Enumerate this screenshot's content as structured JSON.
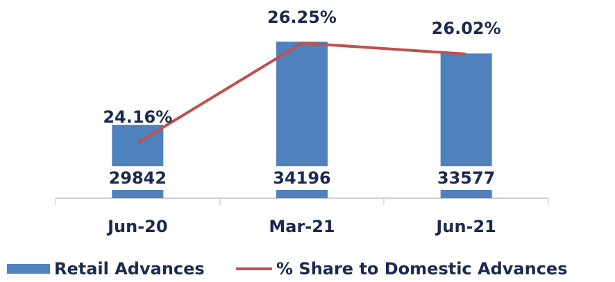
{
  "chart_data": {
    "type": "bar",
    "categories": [
      "Jun-20",
      "Mar-21",
      "Jun-21"
    ],
    "ylim": [
      26000,
      35000
    ],
    "y2lim": [
      23,
      26.6
    ],
    "series": [
      {
        "name": "Retail Advances",
        "type": "bar",
        "color": "#4f81bd",
        "values": [
          29842,
          34196,
          33577
        ]
      },
      {
        "name": "% Share to Domestic Advances",
        "type": "line",
        "axis": "y2",
        "color": "#c0504d",
        "values": [
          24.16,
          26.25,
          26.02
        ],
        "value_labels": [
          "24.16%",
          "26.25%",
          "26.02%"
        ]
      }
    ],
    "legend": "bottom"
  }
}
